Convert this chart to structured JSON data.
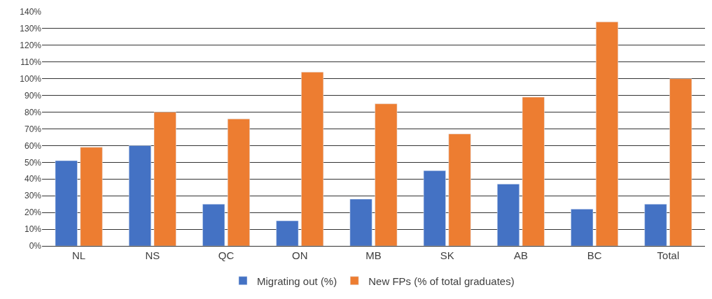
{
  "chart_data": {
    "type": "bar",
    "categories": [
      "NL",
      "NS",
      "QC",
      "ON",
      "MB",
      "SK",
      "AB",
      "BC",
      "Total"
    ],
    "series": [
      {
        "name": "Migrating out (%)",
        "color": "#4472c4",
        "values": [
          51,
          60,
          25,
          15,
          28,
          45,
          37,
          22,
          25
        ]
      },
      {
        "name": "New FPs (% of total graduates)",
        "color": "#ed7d31",
        "values": [
          59,
          80,
          76,
          104,
          85,
          67,
          89,
          134,
          100
        ]
      }
    ],
    "ylim": [
      0,
      140
    ],
    "yticks": [
      {
        "value": 0,
        "label": "0%"
      },
      {
        "value": 10,
        "label": "10%"
      },
      {
        "value": 20,
        "label": "20%"
      },
      {
        "value": 30,
        "label": "30%"
      },
      {
        "value": 40,
        "label": "40%"
      },
      {
        "value": 50,
        "label": "50%"
      },
      {
        "value": 60,
        "label": "60%"
      },
      {
        "value": 70,
        "label": "70%"
      },
      {
        "value": 80,
        "label": "80%"
      },
      {
        "value": 90,
        "label": "90%"
      },
      {
        "value": 100,
        "label": "100%"
      },
      {
        "value": 110,
        "label": "110%"
      },
      {
        "value": 120,
        "label": "120%"
      },
      {
        "value": 130,
        "label": "130%"
      },
      {
        "value": 140,
        "label": "140%"
      }
    ],
    "grid": "y",
    "legend": "bottom"
  }
}
